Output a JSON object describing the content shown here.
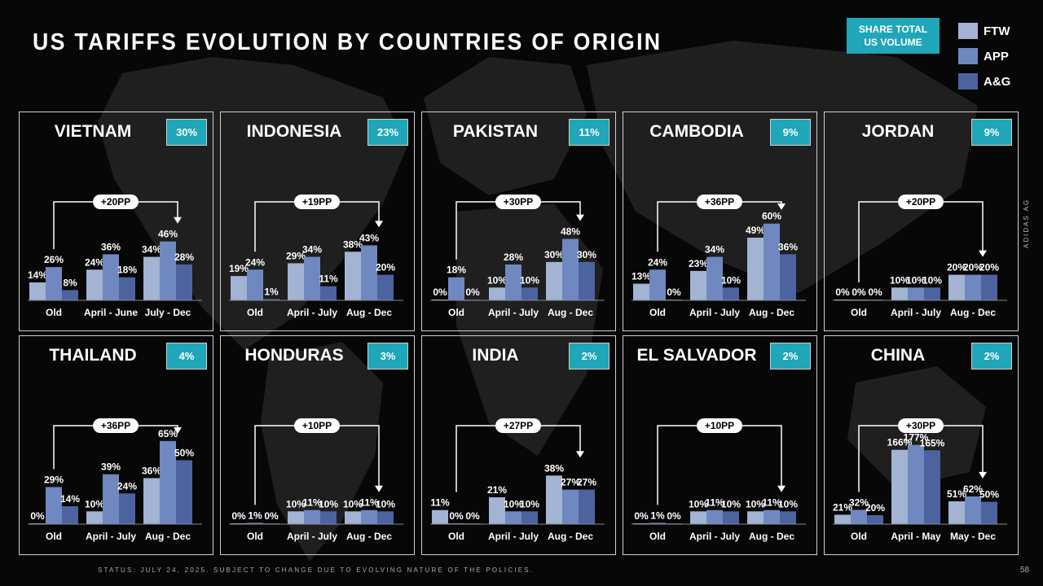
{
  "title": "US TARIFFS EVOLUTION BY COUNTRIES OF ORIGIN",
  "share_box": {
    "line1": "SHARE TOTAL",
    "line2": "US VOLUME"
  },
  "legend": [
    {
      "label": "FTW",
      "color": "#a2b3d3"
    },
    {
      "label": "APP",
      "color": "#6f88bf"
    },
    {
      "label": "A&G",
      "color": "#4c63a0"
    }
  ],
  "side_text": "ADIDAS AG",
  "footer": "STATUS: JULY 24, 2025. SUBJECT TO CHANGE DUE TO EVOLVING NATURE OF THE POLICIES.",
  "page_number": "58",
  "chart_data": [
    {
      "type": "bar",
      "title": "VIETNAM",
      "share": "30%",
      "categories": [
        "Old",
        "April - June",
        "July - Dec"
      ],
      "delta": "+20PP",
      "arrow_from": 0,
      "arrow_to": 2,
      "ymax": 70,
      "series": [
        {
          "name": "FTW",
          "values": [
            14,
            24,
            34
          ]
        },
        {
          "name": "APP",
          "values": [
            26,
            36,
            46
          ]
        },
        {
          "name": "A&G",
          "values": [
            8,
            18,
            28
          ]
        }
      ]
    },
    {
      "type": "bar",
      "title": "INDONESIA",
      "share": "23%",
      "categories": [
        "Old",
        "April - July",
        "Aug - Dec"
      ],
      "delta": "+19PP",
      "arrow_from": 0,
      "arrow_to": 2,
      "ymax": 70,
      "series": [
        {
          "name": "FTW",
          "values": [
            19,
            29,
            38
          ]
        },
        {
          "name": "APP",
          "values": [
            24,
            34,
            43
          ]
        },
        {
          "name": "A&G",
          "values": [
            1,
            11,
            20
          ]
        }
      ]
    },
    {
      "type": "bar",
      "title": "PAKISTAN",
      "share": "11%",
      "categories": [
        "Old",
        "April - July",
        "Aug - Dec"
      ],
      "delta": "+30PP",
      "arrow_from": 0,
      "arrow_to": 2,
      "ymax": 70,
      "series": [
        {
          "name": "FTW",
          "values": [
            0,
            10,
            30
          ]
        },
        {
          "name": "APP",
          "values": [
            18,
            28,
            48
          ]
        },
        {
          "name": "A&G",
          "values": [
            0,
            10,
            30
          ]
        }
      ]
    },
    {
      "type": "bar",
      "title": "CAMBODIA",
      "share": "9%",
      "categories": [
        "Old",
        "April - July",
        "Aug - Dec"
      ],
      "delta": "+36PP",
      "arrow_from": 0,
      "arrow_to": 2,
      "ymax": 70,
      "series": [
        {
          "name": "FTW",
          "values": [
            13,
            23,
            49
          ]
        },
        {
          "name": "APP",
          "values": [
            24,
            34,
            60
          ]
        },
        {
          "name": "A&G",
          "values": [
            0,
            10,
            36
          ]
        }
      ]
    },
    {
      "type": "bar",
      "title": "JORDAN",
      "share": "9%",
      "categories": [
        "Old",
        "April - July",
        "Aug - Dec"
      ],
      "delta": "+20PP",
      "arrow_from": 0,
      "arrow_to": 2,
      "ymax": 70,
      "series": [
        {
          "name": "FTW",
          "values": [
            0,
            10,
            20
          ]
        },
        {
          "name": "APP",
          "values": [
            0,
            10,
            20
          ]
        },
        {
          "name": "A&G",
          "values": [
            0,
            10,
            20
          ]
        }
      ]
    },
    {
      "type": "bar",
      "title": "THAILAND",
      "share": "4%",
      "categories": [
        "Old",
        "April - July",
        "Aug - Dec"
      ],
      "delta": "+36PP",
      "arrow_from": 0,
      "arrow_to": 2,
      "ymax": 70,
      "series": [
        {
          "name": "FTW",
          "values": [
            0,
            10,
            36
          ]
        },
        {
          "name": "APP",
          "values": [
            29,
            39,
            65
          ]
        },
        {
          "name": "A&G",
          "values": [
            14,
            24,
            50
          ]
        }
      ]
    },
    {
      "type": "bar",
      "title": "HONDURAS",
      "share": "3%",
      "categories": [
        "Old",
        "April - July",
        "Aug - Dec"
      ],
      "delta": "+10PP",
      "arrow_from": 0,
      "arrow_to": 2,
      "ymax": 70,
      "series": [
        {
          "name": "FTW",
          "values": [
            0,
            10,
            10
          ]
        },
        {
          "name": "APP",
          "values": [
            1,
            11,
            11
          ]
        },
        {
          "name": "A&G",
          "values": [
            0,
            10,
            10
          ]
        }
      ]
    },
    {
      "type": "bar",
      "title": "INDIA",
      "share": "2%",
      "categories": [
        "Old",
        "April - July",
        "Aug - Dec"
      ],
      "delta": "+27PP",
      "arrow_from": 0,
      "arrow_to": 2,
      "ymax": 70,
      "series": [
        {
          "name": "FTW",
          "values": [
            11,
            21,
            38
          ]
        },
        {
          "name": "APP",
          "values": [
            0,
            10,
            27
          ]
        },
        {
          "name": "A&G",
          "values": [
            0,
            10,
            27
          ]
        }
      ]
    },
    {
      "type": "bar",
      "title": "EL SALVADOR",
      "share": "2%",
      "categories": [
        "Old",
        "April - July",
        "Aug - Dec"
      ],
      "delta": "+10PP",
      "arrow_from": 0,
      "arrow_to": 2,
      "ymax": 70,
      "series": [
        {
          "name": "FTW",
          "values": [
            0,
            10,
            10
          ]
        },
        {
          "name": "APP",
          "values": [
            1,
            11,
            11
          ]
        },
        {
          "name": "A&G",
          "values": [
            0,
            10,
            10
          ]
        }
      ]
    },
    {
      "type": "bar",
      "title": "CHINA",
      "share": "2%",
      "categories": [
        "Old",
        "April - May",
        "May - Dec"
      ],
      "delta": "+30PP",
      "arrow_from": 0,
      "arrow_to": 2,
      "ymax": 200,
      "series": [
        {
          "name": "FTW",
          "values": [
            21,
            166,
            51
          ]
        },
        {
          "name": "APP",
          "values": [
            32,
            177,
            62
          ]
        },
        {
          "name": "A&G",
          "values": [
            20,
            165,
            50
          ]
        }
      ]
    }
  ]
}
